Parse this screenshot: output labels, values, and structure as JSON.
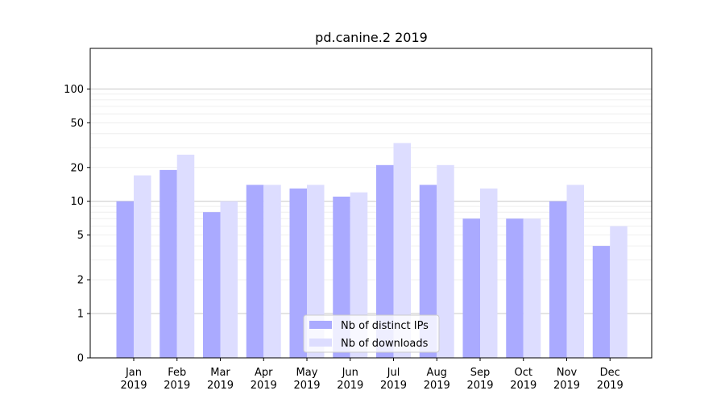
{
  "chart_data": {
    "type": "bar",
    "title": "pd.canine.2 2019",
    "xlabel": "",
    "ylabel": "",
    "y_scale": "symlog",
    "ylim": [
      0,
      120
    ],
    "y_ticks": [
      0,
      1,
      2,
      5,
      10,
      20,
      50,
      100
    ],
    "grid": "horizontal",
    "legend_position": "lower-center",
    "categories": [
      [
        "Jan",
        "2019"
      ],
      [
        "Feb",
        "2019"
      ],
      [
        "Mar",
        "2019"
      ],
      [
        "Apr",
        "2019"
      ],
      [
        "May",
        "2019"
      ],
      [
        "Jun",
        "2019"
      ],
      [
        "Jul",
        "2019"
      ],
      [
        "Aug",
        "2019"
      ],
      [
        "Sep",
        "2019"
      ],
      [
        "Oct",
        "2019"
      ],
      [
        "Nov",
        "2019"
      ],
      [
        "Dec",
        "2019"
      ]
    ],
    "series": [
      {
        "name": "Nb of distinct IPs",
        "color": "#aaaaff",
        "values": [
          10,
          19,
          8,
          14,
          13,
          11,
          21,
          14,
          7,
          7,
          10,
          4
        ]
      },
      {
        "name": "Nb of downloads",
        "color": "#ddddff",
        "values": [
          17,
          26,
          10,
          14,
          14,
          12,
          33,
          21,
          13,
          7,
          14,
          6
        ]
      }
    ]
  }
}
